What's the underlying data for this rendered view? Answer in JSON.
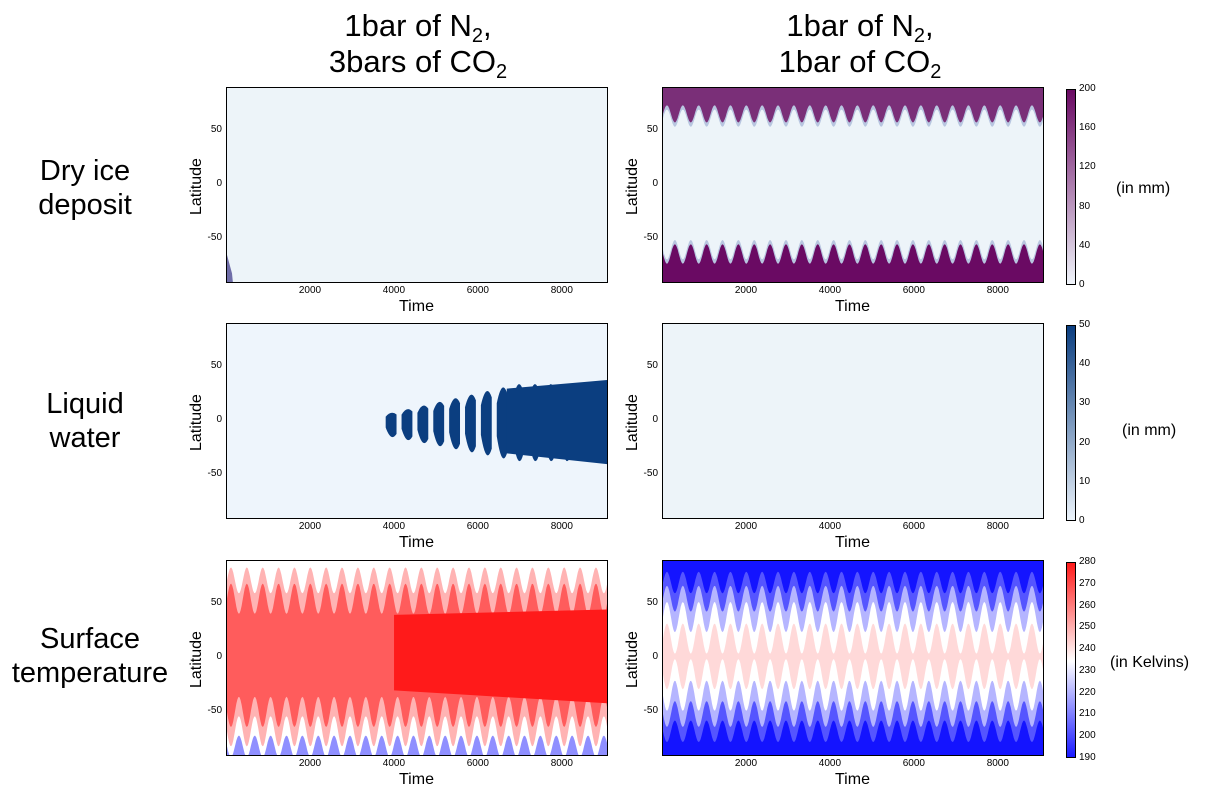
{
  "columns": [
    {
      "line1": "1bar of N",
      "sub1": "2",
      "sep1": ",",
      "line2": "3bars of CO",
      "sub2": "2"
    },
    {
      "line1": "1bar of N",
      "sub1": "2",
      "sep1": ",",
      "line2": "1bar of CO",
      "sub2": "2"
    }
  ],
  "rows": [
    {
      "line1": "Dry ice",
      "line2": "deposit",
      "unit": "(in mm)"
    },
    {
      "line1": "Liquid",
      "line2": "water",
      "unit": "(in mm)"
    },
    {
      "line1": "Surface",
      "line2": "temperature",
      "unit": "(in Kelvins)"
    }
  ],
  "axis": {
    "xlabel": "Time",
    "ylabel": "Latitude"
  },
  "chart_data": [
    {
      "type": "heatmap",
      "xlabel": "Time",
      "ylabel": "Latitude",
      "xlim": [
        0,
        9100
      ],
      "ylim": [
        -90,
        90
      ],
      "x_ticks": [
        "2000",
        "4000",
        "6000",
        "8000"
      ],
      "y_ticks": [
        "50",
        "0",
        "-50"
      ],
      "variable": "Dry ice deposit",
      "case": "1bar N2, 3bars CO2",
      "colorbar": {
        "ticks": [
          "0",
          "40",
          "80",
          "120",
          "160",
          "200"
        ],
        "colors": [
          "#f1f7fc",
          "#3f0043"
        ]
      },
      "description": "near zero everywhere except small deposit near south pole at start"
    },
    {
      "type": "heatmap",
      "xlabel": "Time",
      "ylabel": "Latitude",
      "xlim": [
        0,
        9100
      ],
      "ylim": [
        -90,
        90
      ],
      "x_ticks": [
        "2000",
        "4000",
        "6000",
        "8000"
      ],
      "y_ticks": [
        "50",
        "0",
        "-50"
      ],
      "variable": "Dry ice deposit",
      "case": "1bar N2, 1bar CO2",
      "colorbar": {
        "ticks": [
          "0",
          "40",
          "80",
          "120",
          "160",
          "200"
        ],
        "colors": [
          "#f1f7fc",
          "#6a0a63"
        ]
      },
      "description": "polar caps above ~|55| latitude, oscillating seasonally"
    },
    {
      "type": "heatmap",
      "xlabel": "Time",
      "ylabel": "Latitude",
      "xlim": [
        0,
        9100
      ],
      "ylim": [
        -90,
        90
      ],
      "x_ticks": [
        "2000",
        "4000",
        "6000",
        "8000"
      ],
      "y_ticks": [
        "50",
        "0",
        "-50"
      ],
      "variable": "Liquid water",
      "case": "1bar N2, 3bars CO2",
      "colorbar": {
        "ticks": [
          "0",
          "10",
          "20",
          "30",
          "40",
          "50"
        ],
        "colors": [
          "#eef5fc",
          "#0b3e80"
        ]
      },
      "description": "water accumulation grows after time ~4000 between -50 and 45 latitude"
    },
    {
      "type": "heatmap",
      "xlabel": "Time",
      "ylabel": "Latitude",
      "xlim": [
        0,
        9100
      ],
      "ylim": [
        -90,
        90
      ],
      "x_ticks": [
        "2000",
        "4000",
        "6000",
        "8000"
      ],
      "y_ticks": [
        "50",
        "0",
        "-50"
      ],
      "variable": "Liquid water",
      "case": "1bar N2, 1bar CO2",
      "colorbar": {
        "ticks": [
          "0",
          "10",
          "20",
          "30",
          "40",
          "50"
        ],
        "colors": [
          "#eef5fc",
          "#0b3e80"
        ]
      },
      "description": "zero everywhere"
    },
    {
      "type": "heatmap",
      "xlabel": "Time",
      "ylabel": "Latitude",
      "xlim": [
        0,
        9100
      ],
      "ylim": [
        -90,
        90
      ],
      "x_ticks": [
        "2000",
        "4000",
        "6000",
        "8000"
      ],
      "y_ticks": [
        "50",
        "0",
        "-50"
      ],
      "variable": "Surface temperature",
      "case": "1bar N2, 3bars CO2",
      "colorbar": {
        "ticks": [
          "190",
          "200",
          "210",
          "220",
          "230",
          "240",
          "250",
          "260",
          "270",
          "280"
        ],
        "colors": [
          "#1414ff",
          "#ffffff",
          "#ff1a1a"
        ]
      },
      "description": "warm (red) dominant, seasonal banding"
    },
    {
      "type": "heatmap",
      "xlabel": "Time",
      "ylabel": "Latitude",
      "xlim": [
        0,
        9100
      ],
      "ylim": [
        -90,
        90
      ],
      "x_ticks": [
        "2000",
        "4000",
        "6000",
        "8000"
      ],
      "y_ticks": [
        "50",
        "0",
        "-50"
      ],
      "variable": "Surface temperature",
      "case": "1bar N2, 1bar CO2",
      "colorbar": {
        "ticks": [
          "190",
          "200",
          "210",
          "220",
          "230",
          "240",
          "250",
          "260",
          "270",
          "280"
        ],
        "colors": [
          "#1414ff",
          "#ffffff",
          "#ff1a1a"
        ]
      },
      "description": "cold (blue) poles, warmer equator, seasonal oscillation"
    }
  ]
}
